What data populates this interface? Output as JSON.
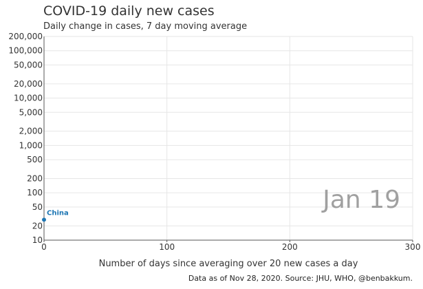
{
  "chart_data": {
    "type": "scatter",
    "title": "COVID-19 daily new cases",
    "subtitle": "Daily change in cases, 7 day moving average",
    "xlabel": "Number of days since averaging over 20 new cases a day",
    "xlim": [
      0,
      300
    ],
    "x_ticks": [
      0,
      100,
      200,
      300
    ],
    "x_tick_labels": [
      "0",
      "100",
      "200",
      "300"
    ],
    "y_scale": "log",
    "ylim": [
      10,
      200000
    ],
    "y_ticks": [
      10,
      20,
      50,
      100,
      200,
      500,
      1000,
      2000,
      5000,
      10000,
      20000,
      50000,
      100000,
      200000
    ],
    "y_tick_labels": [
      "10",
      "20",
      "50",
      "100",
      "200",
      "500",
      "1,000",
      "2,000",
      "5,000",
      "10,000",
      "20,000",
      "50,000",
      "100,000",
      "200,000"
    ],
    "grid": true,
    "current_date": "Jan 19",
    "series": [
      {
        "name": "China",
        "color": "#1f77b4",
        "x": [
          0
        ],
        "y": [
          27
        ]
      }
    ],
    "source": "Data as of Nov 28, 2020. Source: JHU, WHO, @benbakkum."
  }
}
